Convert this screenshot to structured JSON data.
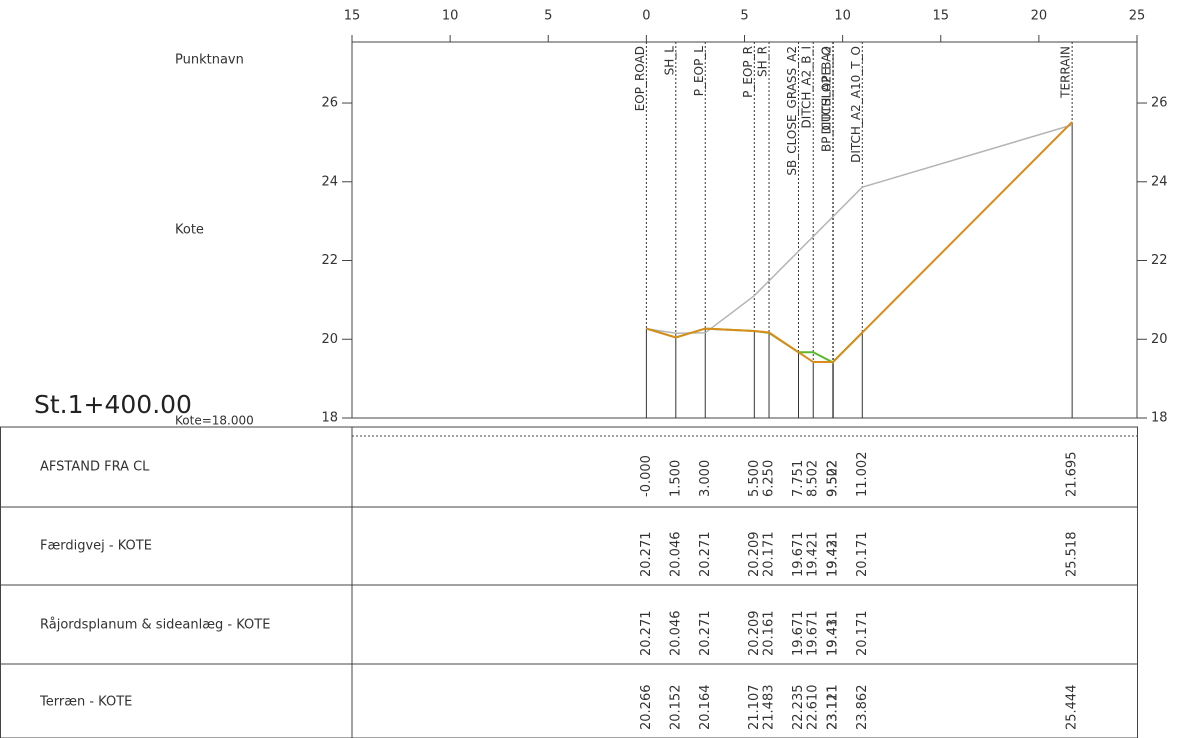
{
  "chart_data": {
    "type": "line",
    "station": "St.1+400.00",
    "datum_label": "Kote=18.000",
    "point_name_label": "Punktnavn",
    "y_label": "Kote",
    "x_row_label": "AFSTAND FRA CL",
    "xlim": [
      -15,
      25
    ],
    "xticks": [
      {
        "value": -15,
        "label": "15"
      },
      {
        "value": -10,
        "label": "10"
      },
      {
        "value": -5,
        "label": "5"
      },
      0,
      5,
      10,
      15,
      20,
      25
    ],
    "ylim": [
      18,
      27.55
    ],
    "yticks": [
      18,
      20,
      22,
      24,
      26
    ],
    "x": [
      0,
      1.5,
      3,
      5.5,
      6.25,
      7.751,
      8.502,
      9.502,
      9.522,
      11.002,
      21.695
    ],
    "x_labels": [
      "-0.000",
      "1.500",
      "3.000",
      "5.500",
      "6.250",
      "7.751",
      "8.502",
      "9.502",
      "9.522",
      "11.002",
      "21.695"
    ],
    "point_names": [
      "EOP_ROAD",
      "SH_L",
      "P_EOP_L",
      "P_EOP_R",
      "SH_R",
      "SB_CLOSE_GRASS_A2",
      "DITCH_A2_B_I",
      "BP_CUTSLOPE_A2",
      "DITCH_A2_B_O",
      "DITCH_A2_A10_T_O",
      "TERRAIN"
    ],
    "series": [
      {
        "name": "Færdigvej - KOTE",
        "color": "#d98c1a",
        "values": [
          20.271,
          20.046,
          20.271,
          20.209,
          20.171,
          19.671,
          19.421,
          19.421,
          19.431,
          20.171,
          25.518
        ],
        "value_labels": [
          "20.271",
          "20.046",
          "20.271",
          "20.209",
          "20.171",
          "19.671",
          "19.421",
          "19.421",
          "19.431",
          "20.171",
          "25.518"
        ]
      },
      {
        "name": "Råjordsplanum & sideanlæg - KOTE",
        "color": "#5cb82e",
        "values": [
          20.271,
          20.046,
          20.271,
          20.209,
          20.161,
          19.671,
          19.671,
          19.411,
          19.431,
          20.171,
          null
        ],
        "value_labels": [
          "20.271",
          "20.046",
          "20.271",
          "20.209",
          "20.161",
          "19.671",
          "19.671",
          "19.411",
          "19.431",
          "20.171",
          null
        ]
      },
      {
        "name": "Terræn - KOTE",
        "color": "#b4b4b4",
        "values": [
          20.266,
          20.152,
          20.164,
          21.107,
          21.483,
          22.235,
          22.61,
          23.111,
          23.121,
          23.862,
          25.444
        ],
        "value_labels": [
          "20.266",
          "20.152",
          "20.164",
          "21.107",
          "21.483",
          "22.235",
          "22.610",
          "23.111",
          "23.121",
          "23.862",
          "25.444"
        ]
      }
    ]
  }
}
